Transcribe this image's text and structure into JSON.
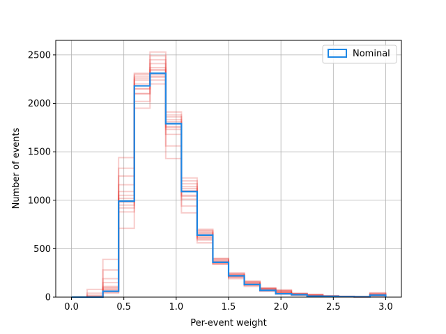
{
  "chart_data": {
    "type": "histogram",
    "xlabel": "Per-event weight",
    "ylabel": "Number of events",
    "xlim": [
      -0.15,
      3.15
    ],
    "ylim": [
      0,
      2650
    ],
    "xticks": [
      "0.0",
      "0.5",
      "1.0",
      "1.5",
      "2.0",
      "2.5",
      "3.0"
    ],
    "yticks": [
      "0",
      "500",
      "1000",
      "1500",
      "2000",
      "2500"
    ],
    "grid": true,
    "legend_position": "top-right",
    "bin_edges": [
      0.0,
      0.15,
      0.3,
      0.45,
      0.6,
      0.75,
      0.9,
      1.05,
      1.2,
      1.35,
      1.5,
      1.65,
      1.8,
      1.95,
      2.1,
      2.25,
      2.4,
      2.55,
      2.7,
      2.85,
      3.0
    ],
    "nominal": {
      "name": "Nominal",
      "color": "#1e88e5",
      "values": [
        0,
        0,
        60,
        990,
        2180,
        2310,
        1790,
        1090,
        640,
        360,
        220,
        130,
        70,
        35,
        25,
        10,
        8,
        5,
        3,
        20
      ]
    },
    "variations": {
      "color": "#e53935",
      "series": [
        [
          0,
          80,
          390,
          1440,
          1950,
          2530,
          1430,
          870,
          560,
          340,
          190,
          110,
          60,
          30,
          20,
          10,
          5,
          5,
          3,
          10
        ],
        [
          0,
          40,
          280,
          1330,
          2020,
          2490,
          1560,
          940,
          590,
          350,
          200,
          120,
          65,
          40,
          22,
          12,
          6,
          4,
          2,
          15
        ],
        [
          0,
          20,
          190,
          1250,
          2100,
          2450,
          1680,
          1010,
          610,
          360,
          210,
          125,
          70,
          45,
          25,
          14,
          7,
          5,
          3,
          20
        ],
        [
          0,
          10,
          150,
          1160,
          2150,
          2410,
          1730,
          1050,
          630,
          370,
          220,
          135,
          75,
          50,
          28,
          16,
          8,
          5,
          3,
          25
        ],
        [
          0,
          5,
          110,
          1090,
          2200,
          2370,
          1790,
          1090,
          650,
          380,
          230,
          140,
          80,
          55,
          30,
          18,
          9,
          6,
          4,
          30
        ],
        [
          0,
          3,
          90,
          1050,
          2240,
          2340,
          1810,
          1120,
          660,
          390,
          240,
          145,
          85,
          60,
          32,
          20,
          10,
          6,
          4,
          35
        ],
        [
          0,
          2,
          80,
          1020,
          2260,
          2300,
          1830,
          1140,
          670,
          395,
          245,
          150,
          88,
          62,
          34,
          22,
          11,
          7,
          5,
          40
        ],
        [
          0,
          2,
          70,
          980,
          2280,
          2270,
          1860,
          1170,
          680,
          400,
          250,
          155,
          90,
          65,
          36,
          24,
          12,
          7,
          5,
          45
        ],
        [
          0,
          1,
          60,
          950,
          2300,
          2240,
          1880,
          1200,
          690,
          360,
          230,
          160,
          92,
          70,
          38,
          26,
          13,
          8,
          6,
          30
        ],
        [
          0,
          1,
          50,
          920,
          2310,
          2200,
          1910,
          1230,
          700,
          350,
          225,
          165,
          95,
          75,
          40,
          28,
          14,
          8,
          6,
          25
        ],
        [
          0,
          0,
          40,
          880,
          2150,
          2280,
          1750,
          1040,
          620,
          340,
          215,
          128,
          68,
          38,
          24,
          11,
          7,
          5,
          3,
          18
        ],
        [
          0,
          0,
          100,
          710,
          2100,
          2350,
          1760,
          1100,
          600,
          370,
          210,
          132,
          72,
          42,
          26,
          13,
          8,
          5,
          4,
          22
        ]
      ]
    }
  }
}
